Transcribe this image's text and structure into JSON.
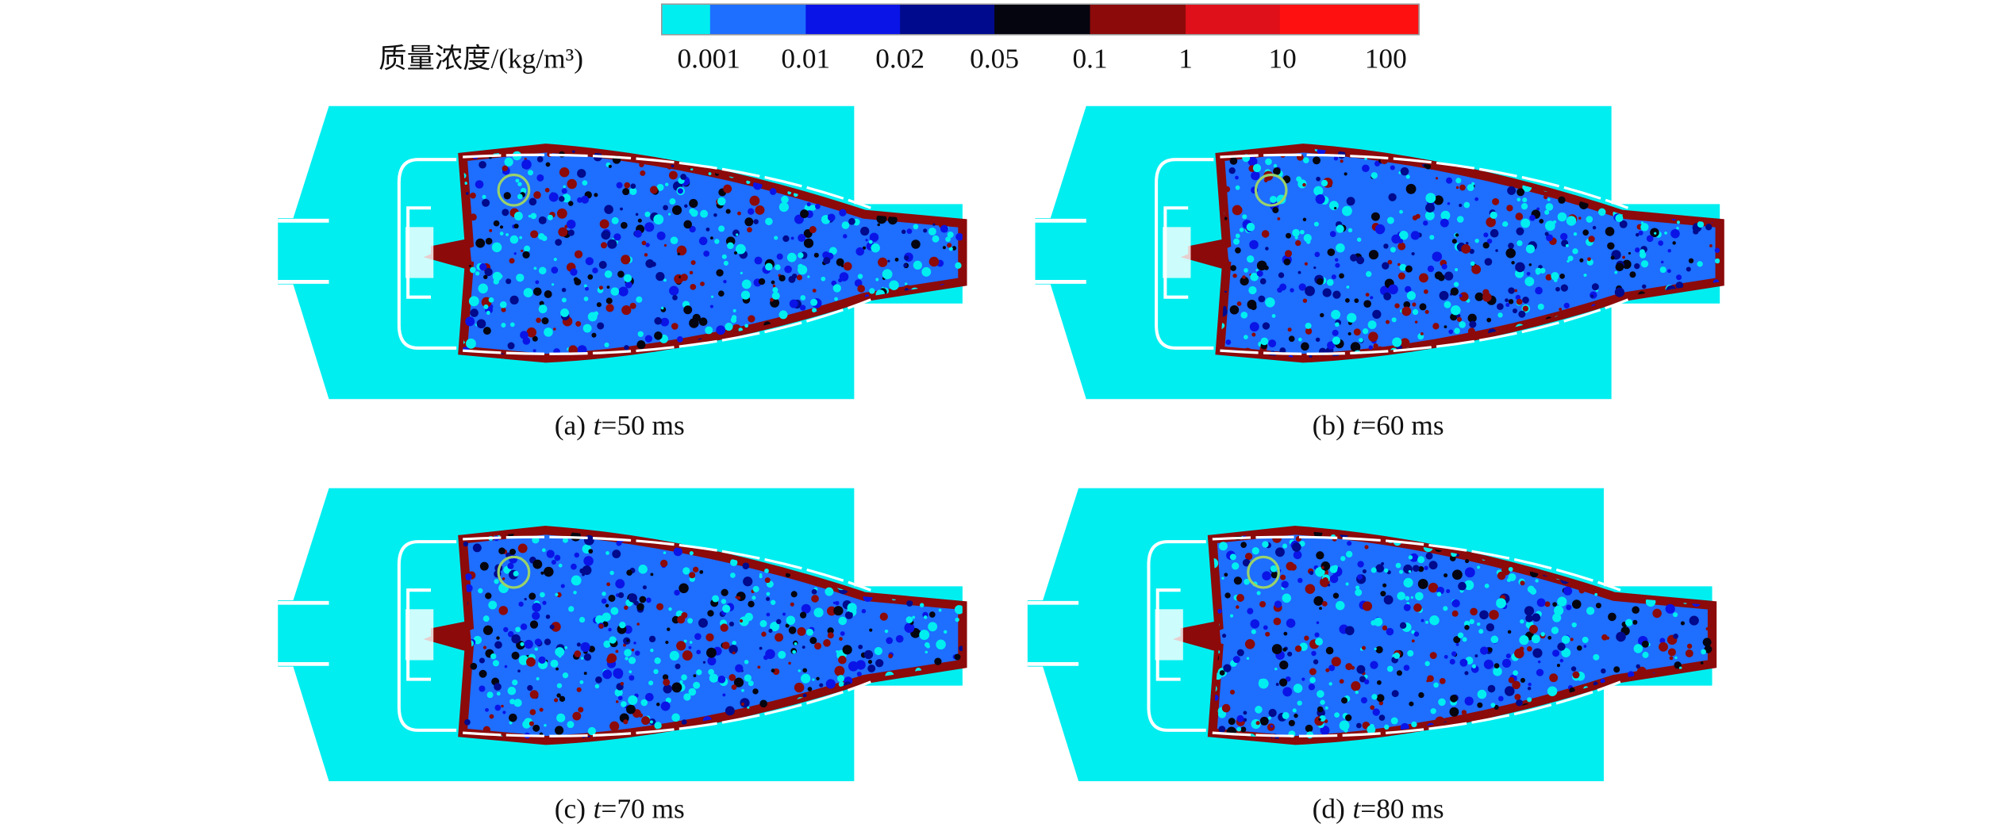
{
  "colorbar": {
    "title": "质量浓度/(kg/m³)",
    "labels": [
      "0.001",
      "0.01",
      "0.02",
      "0.05",
      "0.1",
      "1",
      "10",
      "100"
    ],
    "colors": [
      "#00eef0",
      "#1e6eff",
      "#0a14e6",
      "#000a8c",
      "#050510",
      "#8c0a0a",
      "#e0101a",
      "#ff1010"
    ]
  },
  "panels": [
    {
      "label": "(a)",
      "variable": "t",
      "value": "=50 ms"
    },
    {
      "label": "(b)",
      "variable": "t",
      "value": "=60 ms"
    },
    {
      "label": "(c)",
      "variable": "t",
      "value": "=70 ms"
    },
    {
      "label": "(d)",
      "variable": "t",
      "value": "=80 ms"
    }
  ]
}
